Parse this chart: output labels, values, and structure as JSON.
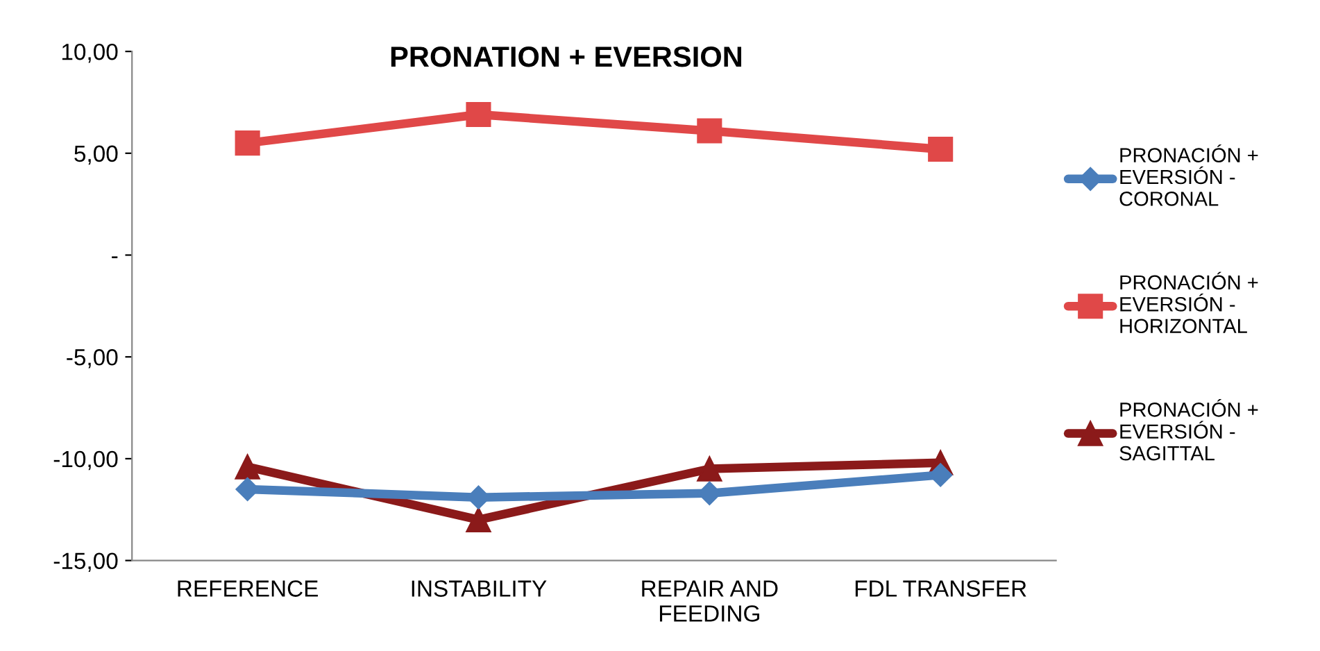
{
  "chart_data": {
    "type": "line",
    "title": "PRONATION + EVERSION",
    "categories": [
      "REFERENCE",
      "INSTABILITY",
      "REPAIR AND FEEDING",
      "FDL TRANSFER"
    ],
    "series": [
      {
        "name": "PRONACIÓN + EVERSIÓN - CORONAL",
        "color": "#4a7ebb",
        "marker": "diamond",
        "values": [
          -11.5,
          -11.9,
          -11.7,
          -10.8
        ]
      },
      {
        "name": "PRONACIÓN + EVERSIÓN - HORIZONTAL",
        "color": "#e04848",
        "marker": "square",
        "values": [
          5.5,
          6.9,
          6.1,
          5.2
        ]
      },
      {
        "name": "PRONACIÓN + EVERSIÓN - SAGITTAL",
        "color": "#8b1a1a",
        "marker": "triangle",
        "values": [
          -10.4,
          -13.0,
          -10.5,
          -10.2
        ]
      }
    ],
    "ylim": [
      -15,
      10
    ],
    "yticks": [
      {
        "value": -15,
        "label": "-15,00"
      },
      {
        "value": -10,
        "label": "-10,00"
      },
      {
        "value": -5,
        "label": "-5,00"
      },
      {
        "value": 0,
        "label": "-"
      },
      {
        "value": 5,
        "label": "5,00"
      },
      {
        "value": 10,
        "label": "10,00"
      }
    ],
    "grid": false,
    "legend": "right",
    "line_style": "solid"
  }
}
